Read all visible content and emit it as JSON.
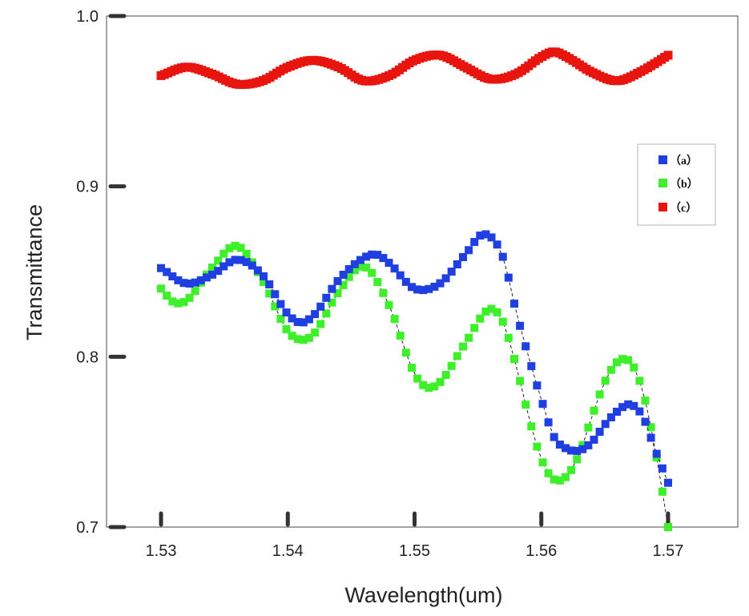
{
  "chart_data": {
    "type": "scatter",
    "xlabel": "Wavelength(um)",
    "ylabel": "Transmittance",
    "xlim": [
      1.5257,
      1.5755
    ],
    "ylim": [
      0.7,
      1.0
    ],
    "x_ticks": [
      1.53,
      1.54,
      1.55,
      1.56,
      1.57
    ],
    "x_tick_labels": [
      "1.53",
      "1.54",
      "1.55",
      "1.56",
      "1.57"
    ],
    "y_ticks": [
      0.7,
      0.8,
      0.9,
      1.0
    ],
    "y_tick_labels": [
      "0.7",
      "0.8",
      "0.9",
      "1.0"
    ],
    "grid": false,
    "legend_position": "top-right",
    "marker": "square",
    "series": [
      {
        "name": "（a）",
        "color": "#1f3fe0",
        "x": [
          1.53,
          1.532,
          1.534,
          1.536,
          1.538,
          1.54,
          1.541,
          1.542,
          1.544,
          1.546,
          1.547,
          1.548,
          1.55,
          1.552,
          1.554,
          1.5555,
          1.557,
          1.558,
          1.559,
          1.56,
          1.561,
          1.562,
          1.563,
          1.564,
          1.565,
          1.566,
          1.567,
          1.568,
          1.569,
          1.57
        ],
        "y": [
          0.852,
          0.843,
          0.848,
          0.857,
          0.848,
          0.825,
          0.82,
          0.824,
          0.845,
          0.858,
          0.86,
          0.855,
          0.84,
          0.843,
          0.86,
          0.872,
          0.858,
          0.827,
          0.8,
          0.775,
          0.753,
          0.746,
          0.745,
          0.75,
          0.76,
          0.768,
          0.772,
          0.765,
          0.745,
          0.726
        ]
      },
      {
        "name": "（b）",
        "color": "#3ef02a",
        "x": [
          1.53,
          1.531,
          1.532,
          1.534,
          1.536,
          1.538,
          1.54,
          1.541,
          1.542,
          1.544,
          1.546,
          1.548,
          1.55,
          1.551,
          1.552,
          1.554,
          1.556,
          1.557,
          1.558,
          1.559,
          1.56,
          1.561,
          1.562,
          1.563,
          1.564,
          1.565,
          1.566,
          1.567,
          1.568,
          1.569,
          1.57
        ],
        "y": [
          0.84,
          0.832,
          0.833,
          0.852,
          0.865,
          0.845,
          0.815,
          0.81,
          0.813,
          0.838,
          0.853,
          0.83,
          0.79,
          0.782,
          0.785,
          0.808,
          0.828,
          0.82,
          0.795,
          0.765,
          0.74,
          0.728,
          0.73,
          0.743,
          0.765,
          0.785,
          0.797,
          0.797,
          0.78,
          0.745,
          0.7
        ]
      },
      {
        "name": "（c）",
        "color": "#e8140e",
        "x": [
          1.53,
          1.532,
          1.534,
          1.536,
          1.538,
          1.54,
          1.542,
          1.544,
          1.546,
          1.548,
          1.55,
          1.552,
          1.554,
          1.556,
          1.558,
          1.56,
          1.561,
          1.562,
          1.564,
          1.566,
          1.568,
          1.57
        ],
        "y": [
          0.965,
          0.97,
          0.966,
          0.96,
          0.962,
          0.97,
          0.974,
          0.97,
          0.962,
          0.965,
          0.974,
          0.977,
          0.97,
          0.963,
          0.966,
          0.976,
          0.979,
          0.976,
          0.967,
          0.962,
          0.968,
          0.977
        ]
      }
    ]
  }
}
